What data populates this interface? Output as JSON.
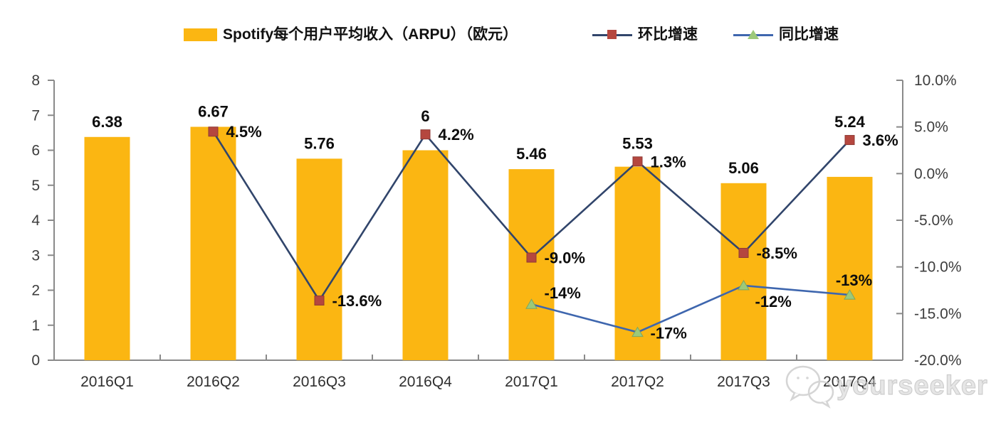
{
  "page": {
    "background": "#ffffff"
  },
  "legend": {
    "items": [
      {
        "id": "arpu",
        "label": "Spotify每个用户平均收入（ARPU）（欧元）",
        "swatch": "bar",
        "color": "#FBB612"
      },
      {
        "id": "qoq",
        "label": "环比增速",
        "swatch": "line-square",
        "line_color": "#31456B",
        "marker_color": "#B5473F"
      },
      {
        "id": "yoy",
        "label": "同比增速",
        "swatch": "line-triangle",
        "line_color": "#3E66AE",
        "marker_color": "#9CC97A"
      }
    ]
  },
  "watermark": {
    "text": "yourseeker",
    "icon": "wechat-bubbles-icon"
  },
  "chart_data": {
    "type": "combo-bar-line",
    "title": "",
    "categories": [
      "2016Q1",
      "2016Q2",
      "2016Q3",
      "2016Q4",
      "2017Q1",
      "2017Q2",
      "2017Q3",
      "2017Q4"
    ],
    "series": [
      {
        "name": "Spotify每个用户平均收入（ARPU）（欧元）",
        "type": "bar",
        "axis": "left",
        "color": "#FBB612",
        "values": [
          6.38,
          6.67,
          5.76,
          6,
          5.46,
          5.53,
          5.06,
          5.24
        ],
        "labels": [
          "6.38",
          "6.67",
          "5.76",
          "6",
          "5.46",
          "5.53",
          "5.06",
          "5.24"
        ]
      },
      {
        "name": "环比增速",
        "type": "line",
        "axis": "right",
        "color": "#31456B",
        "marker": "square",
        "marker_color": "#B5473F",
        "values": [
          null,
          4.5,
          -13.6,
          4.2,
          -9.0,
          1.3,
          -8.5,
          3.6
        ],
        "labels": [
          null,
          "4.5%",
          "-13.6%",
          "4.2%",
          "-9.0%",
          "1.3%",
          "-8.5%",
          "3.6%"
        ]
      },
      {
        "name": "同比增速",
        "type": "line",
        "axis": "right",
        "color": "#3E66AE",
        "marker": "triangle",
        "marker_color": "#9CC97A",
        "values": [
          null,
          null,
          null,
          null,
          -14,
          -17,
          -12,
          -13
        ],
        "labels": [
          null,
          null,
          null,
          null,
          "-14%",
          "-17%",
          "-12%",
          "-13%"
        ]
      }
    ],
    "left_axis": {
      "min": 0,
      "max": 8,
      "tick_step": 1,
      "tick_labels": [
        "0",
        "1",
        "2",
        "3",
        "4",
        "5",
        "6",
        "7",
        "8"
      ]
    },
    "right_axis": {
      "min": -20,
      "max": 10,
      "tick_step": 5,
      "tick_labels": [
        "-20.0%",
        "-15.0%",
        "-10.0%",
        "-5.0%",
        "0.0%",
        "5.0%",
        "10.0%"
      ]
    },
    "grid": false,
    "legend_position": "top"
  }
}
